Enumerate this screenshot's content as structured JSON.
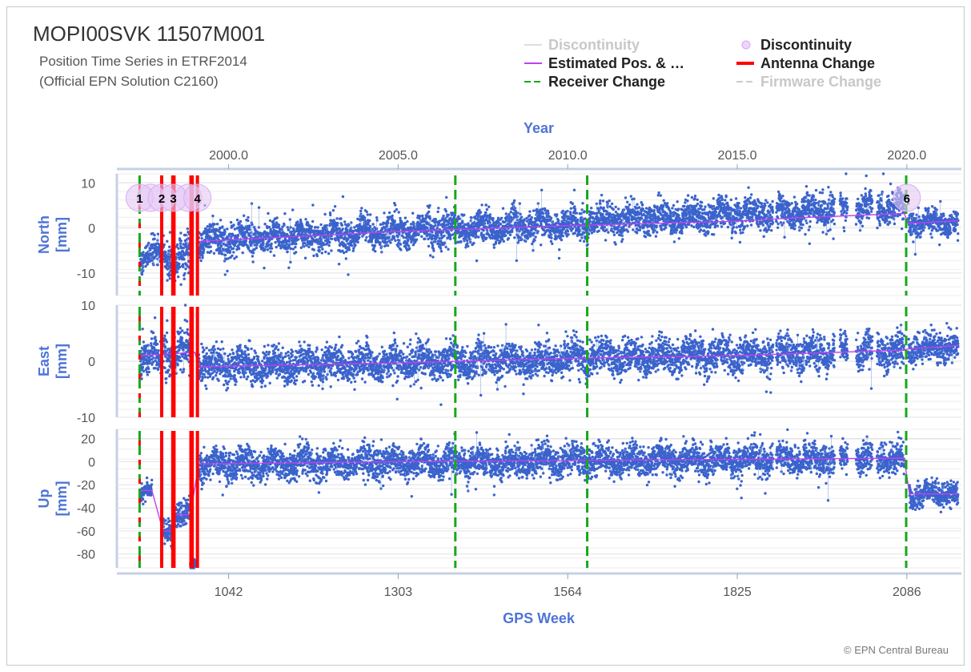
{
  "header": {
    "title": "MOPI00SVK 11507M001",
    "subtitle_line1": "Position Time Series in ETRF2014",
    "subtitle_line2": "(Official EPN Solution C2160)"
  },
  "legend": [
    {
      "label": "Discontinuity",
      "symbol": "line",
      "color": "#dddddd",
      "dash": false,
      "active": false
    },
    {
      "label": "Discontinuity",
      "symbol": "circle",
      "color": "#d9a6f0",
      "dash": false,
      "active": true
    },
    {
      "label": "Estimated Pos. & …",
      "symbol": "line",
      "color": "#c040f0",
      "dash": false,
      "active": true
    },
    {
      "label": "Antenna Change",
      "symbol": "line",
      "color": "#ff0000",
      "dash": false,
      "active": true
    },
    {
      "label": "Receiver Change",
      "symbol": "line",
      "color": "#17a81a",
      "dash": true,
      "active": true
    },
    {
      "label": "Firmware Change",
      "symbol": "line",
      "color": "#cccccc",
      "dash": true,
      "active": false
    }
  ],
  "credit": "© EPN Central Bureau",
  "colors": {
    "points": "#3a63cc",
    "trend": "#c040f0",
    "antenna": "#ff0000",
    "receiver": "#17a81a",
    "discontinuity": "#e6c8f5",
    "axis_title": "#4f74d6",
    "frame_line": "#c5d0e6"
  },
  "chart_data": {
    "type": "scatter",
    "x_axis_bottom": {
      "title": "GPS Week",
      "ticks": [
        1042,
        1303,
        1564,
        1825,
        2086
      ],
      "range": [
        870,
        2170
      ]
    },
    "x_axis_top": {
      "title": "Year",
      "ticks": [
        "2000.0",
        "2005.0",
        "2010.0",
        "2015.0",
        "2020.0"
      ],
      "tick_weeks": [
        1042,
        1303,
        1564,
        1825,
        2086
      ]
    },
    "panels": [
      {
        "name": "North",
        "ylabel": "North\n[mm]",
        "ylim": [
          -15,
          12
        ],
        "yticks": [
          10,
          0,
          -10
        ],
        "segments": [
          {
            "start": 906,
            "end": 938,
            "offset": -6.2,
            "slope": 0.0,
            "noise": 1.6
          },
          {
            "start": 941,
            "end": 955,
            "offset": -6.5,
            "slope": 0.0,
            "noise": 1.6
          },
          {
            "start": 957,
            "end": 985,
            "offset": -7.5,
            "slope": 0.05,
            "noise": 2.0
          },
          {
            "start": 996,
            "end": 2082,
            "offset": -3.0,
            "slope": 0.0072,
            "noise": 1.7
          },
          {
            "start": 2088,
            "end": 2165,
            "offset": 1.0,
            "slope": 0.006,
            "noise": 1.3
          }
        ],
        "gaps": [
          [
            1880,
            1885
          ],
          [
            1975,
            1983
          ],
          [
            1995,
            2008
          ],
          [
            2033,
            2040
          ]
        ],
        "trend": [
          [
            996,
            -3.0
          ],
          [
            1300,
            -0.8
          ],
          [
            1564,
            0.5
          ],
          [
            1825,
            1.5
          ],
          [
            1910,
            2.2
          ],
          [
            2082,
            3.2
          ],
          [
            2088,
            1.0
          ],
          [
            2165,
            1.6
          ]
        ]
      },
      {
        "name": "East",
        "ylabel": "East\n[mm]",
        "ylim": [
          -10,
          10
        ],
        "yticks": [
          10,
          0,
          -10
        ],
        "segments": [
          {
            "start": 906,
            "end": 938,
            "offset": 1.0,
            "slope": 0.0,
            "noise": 1.6
          },
          {
            "start": 941,
            "end": 955,
            "offset": 1.5,
            "slope": 0.0,
            "noise": 1.6
          },
          {
            "start": 957,
            "end": 985,
            "offset": 1.6,
            "slope": 0.0,
            "noise": 1.8
          },
          {
            "start": 996,
            "end": 2082,
            "offset": -1.0,
            "slope": 0.0026,
            "noise": 1.5
          },
          {
            "start": 2088,
            "end": 2165,
            "offset": 2.2,
            "slope": 0.008,
            "noise": 1.2
          }
        ],
        "gaps": [
          [
            1880,
            1885
          ],
          [
            1975,
            1983
          ],
          [
            1995,
            2008
          ],
          [
            2033,
            2040
          ]
        ],
        "trend": [
          [
            906,
            1.0
          ],
          [
            990,
            1.6
          ],
          [
            996,
            -1.0
          ],
          [
            1300,
            -0.3
          ],
          [
            1564,
            0.5
          ],
          [
            1825,
            1.0
          ],
          [
            2082,
            2.0
          ],
          [
            2088,
            2.2
          ],
          [
            2165,
            2.8
          ]
        ]
      },
      {
        "name": "Up",
        "ylabel": "Up\n[mm]",
        "ylim": [
          -92,
          28
        ],
        "yticks": [
          20,
          0,
          -20,
          -40,
          -60,
          -80
        ],
        "segments": [
          {
            "start": 906,
            "end": 924,
            "offset": -25,
            "slope": 0.0,
            "noise": 4.0
          },
          {
            "start": 941,
            "end": 955,
            "offset": -60,
            "slope": 0.0,
            "noise": 5.0
          },
          {
            "start": 958,
            "end": 983,
            "offset": -47,
            "slope": 0.0,
            "noise": 5.5
          },
          {
            "start": 983,
            "end": 991,
            "offset": -88,
            "slope": 0.0,
            "noise": 3.0
          },
          {
            "start": 996,
            "end": 2082,
            "offset": -2.0,
            "slope": 0.0045,
            "noise": 6.5
          },
          {
            "start": 2090,
            "end": 2165,
            "offset": -28,
            "slope": 0.0,
            "noise": 5.0
          }
        ],
        "gaps": [
          [
            1880,
            1885
          ],
          [
            1975,
            1983
          ],
          [
            1995,
            2008
          ],
          [
            2033,
            2040
          ]
        ],
        "trend": [
          [
            906,
            -25
          ],
          [
            924,
            -25
          ],
          [
            941,
            -60
          ],
          [
            955,
            -60
          ],
          [
            958,
            -46
          ],
          [
            983,
            -46
          ],
          [
            996,
            -2
          ],
          [
            1300,
            0
          ],
          [
            1564,
            1
          ],
          [
            1825,
            2
          ],
          [
            2082,
            3
          ],
          [
            2090,
            -28
          ],
          [
            2165,
            -28
          ]
        ]
      }
    ],
    "events": {
      "receiver_change": [
        905,
        1391,
        1594,
        2085
      ],
      "antenna_change": [
        939,
        956,
        958,
        984,
        986,
        994
      ],
      "discontinuities": [
        {
          "week": 905,
          "label": "1"
        },
        {
          "week": 939,
          "label": "2"
        },
        {
          "week": 957,
          "label": "3"
        },
        {
          "week": 994,
          "label": "4"
        },
        {
          "week": 2086,
          "label": "6"
        }
      ],
      "discontinuity_extra_circles": [
        922,
        980
      ]
    }
  }
}
